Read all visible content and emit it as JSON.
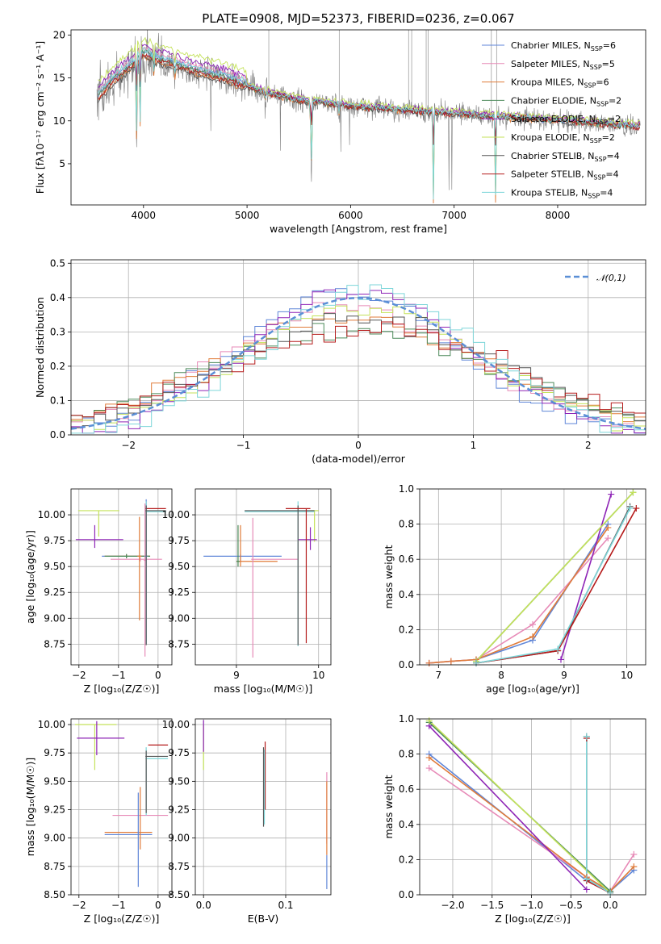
{
  "colors": {
    "Chabrier MILES": "#5f86d8",
    "Salpeter MILES": "#e78ab7",
    "Kroupa MILES": "#e07b39",
    "Chabrier ELODIE": "#4c8a5a",
    "Salpeter ELODIE": "#8e24b6",
    "Kroupa ELODIE": "#c4e25a",
    "Chabrier STELIB": "#555555",
    "Salpeter STELIB": "#b51b1b",
    "Kroupa STELIB": "#7dd6d9",
    "gauss": "#5b8fd6"
  },
  "chart_data": [
    {
      "id": "spectrum",
      "type": "line",
      "title": "PLATE=0908, MJD=52373, FIBERID=0236, z=0.067",
      "xlabel": "wavelength [Angstrom, rest frame]",
      "ylabel": "Flux [fλ10⁻¹⁷ erg cm⁻² s⁻¹ A⁻¹]",
      "xlim": [
        3300,
        8850
      ],
      "ylim": [
        0.2,
        20.6
      ],
      "xticks": [
        4000,
        5000,
        6000,
        7000,
        8000
      ],
      "yticks": [
        5,
        10,
        15,
        20
      ],
      "grid": false,
      "legend": [
        "Chabrier MILES, N_SSP=6",
        "Salpeter MILES, N_SSP=5",
        "Kroupa MILES, N_SSP=6",
        "Chabrier ELODIE, N_SSP=2",
        "Salpeter ELODIE, N_SSP=2",
        "Kroupa ELODIE, N_SSP=2",
        "Chabrier STELIB, N_SSP=4",
        "Salpeter STELIB, N_SSP=4",
        "Kroupa STELIB, N_SSP=4"
      ],
      "legend_position": "upper-right",
      "continuum": {
        "x": [
          3550,
          3700,
          3900,
          4000,
          4100,
          4300,
          4500,
          4800,
          5000,
          5200,
          5500,
          6000,
          6500,
          7000,
          7500,
          8000,
          8500,
          8800
        ],
        "y": [
          12.5,
          14.5,
          16.5,
          17.8,
          17.2,
          16.5,
          15.7,
          14.8,
          14.0,
          13.2,
          12.4,
          11.7,
          11.2,
          10.8,
          10.4,
          10.0,
          9.6,
          9.3
        ]
      },
      "absorption_features": [
        {
          "x": 3933,
          "depth": 9.5
        },
        {
          "x": 3968,
          "depth": 8.0
        },
        {
          "x": 4100,
          "depth": 2.0
        },
        {
          "x": 4300,
          "depth": 2.5
        },
        {
          "x": 5175,
          "depth": 1.5
        },
        {
          "x": 5620,
          "depth": 11.5
        },
        {
          "x": 5890,
          "depth": 1.5
        },
        {
          "x": 6800,
          "depth": 10.5
        },
        {
          "x": 7400,
          "depth": 9.5
        }
      ]
    },
    {
      "id": "residuals",
      "type": "line",
      "xlabel": "(data-model)/error",
      "ylabel": "Normed distribution",
      "xlim": [
        -2.5,
        2.5
      ],
      "ylim": [
        0,
        0.51
      ],
      "xticks": [
        -2,
        -1,
        0,
        1,
        2
      ],
      "yticks": [
        0.0,
        0.1,
        0.2,
        0.3,
        0.4,
        0.5
      ],
      "grid": true,
      "legend": [
        "𝒩(0,1)"
      ],
      "legend_position": "upper-right",
      "reference_curve": {
        "name": "𝒩(0,1)",
        "mean": 0,
        "sigma": 1
      },
      "histograms": "step histograms, 50 bins over [-2.5, 2.5], one per model, approximately normal"
    },
    {
      "id": "age_vs_Z",
      "type": "scatter",
      "xlabel": "Z [log₁₀(Z/Z☉)]",
      "ylabel": "age  [log₁₀(age/yr)]",
      "xlim": [
        -2.2,
        0.35
      ],
      "ylim": [
        8.55,
        10.25
      ],
      "xticks": [
        -2,
        -1,
        0
      ],
      "yticks": [
        8.75,
        9.0,
        9.25,
        9.5,
        9.75,
        10.0
      ],
      "grid": true,
      "points": [
        {
          "model": "Kroupa ELODIE",
          "x": -1.5,
          "xerr": [
            0.52,
            0.52
          ],
          "y": 10.04,
          "yerr": [
            0.25,
            0.0
          ]
        },
        {
          "model": "Salpeter ELODIE",
          "x": -1.6,
          "xerr": [
            0.48,
            0.72
          ],
          "y": 9.76,
          "yerr": [
            0.08,
            0.14
          ]
        },
        {
          "model": "Chabrier MILES",
          "x": -0.8,
          "xerr": [
            0.62,
            0.58
          ],
          "y": 9.6,
          "yerr": [
            0.02,
            0.02
          ]
        },
        {
          "model": "Kroupa MILES",
          "x": -0.8,
          "xerr": [
            0.55,
            0.6
          ],
          "y": 9.6,
          "yerr": [
            0.02,
            0.02
          ]
        },
        {
          "model": "Chabrier ELODIE",
          "x": -0.8,
          "xerr": [
            0.55,
            0.6
          ],
          "y": 9.6,
          "yerr": [
            0.02,
            0.02
          ]
        },
        {
          "model": "Salpeter MILES",
          "x": -0.45,
          "xerr": [
            0.75,
            0.55
          ],
          "y": 9.57,
          "yerr": [
            0.02,
            0.02
          ]
        },
        {
          "model": "Kroupa MILES",
          "x": -0.47,
          "xerr": [
            0.05,
            0.05
          ],
          "y": 9.6,
          "yerr": [
            0.62,
            0.38
          ]
        },
        {
          "model": "Salpeter MILES",
          "x": -0.33,
          "xerr": [
            0.03,
            0.03
          ],
          "y": 9.56,
          "yerr": [
            0.93,
            0.55
          ]
        },
        {
          "model": "Chabrier MILES",
          "x": -0.3,
          "xerr": [
            0.03,
            0.03
          ],
          "y": 9.6,
          "yerr": [
            0.85,
            0.55
          ]
        },
        {
          "model": "Kroupa STELIB",
          "x": -0.3,
          "xerr": [
            0.02,
            0.5
          ],
          "y": 10.03,
          "yerr": [
            1.28,
            0.1
          ]
        },
        {
          "model": "Salpeter STELIB",
          "x": -0.3,
          "xerr": [
            0.02,
            0.5
          ],
          "y": 10.06,
          "yerr": [
            0.0,
            0.0
          ]
        },
        {
          "model": "Chabrier STELIB",
          "x": -0.3,
          "xerr": [
            0.02,
            0.5
          ],
          "y": 10.04,
          "yerr": [
            1.3,
            0.05
          ]
        }
      ]
    },
    {
      "id": "age_vs_mass",
      "type": "scatter",
      "xlabel": "mass [log₁₀(M/M☉)]",
      "ylabel": "",
      "xlim": [
        8.5,
        10.15
      ],
      "ylim": [
        8.55,
        10.25
      ],
      "xticks": [
        9,
        10
      ],
      "yticks": [
        8.75,
        9.0,
        9.25,
        9.5,
        9.75,
        10.0
      ],
      "grid": true,
      "points": [
        {
          "model": "Kroupa ELODIE",
          "x": 9.95,
          "xerr": [
            0.05,
            0.05
          ],
          "y": 10.04,
          "yerr": [
            0.3,
            0.0
          ]
        },
        {
          "model": "Salpeter ELODIE",
          "x": 9.9,
          "xerr": [
            0.15,
            0.08
          ],
          "y": 9.76,
          "yerr": [
            0.1,
            0.12
          ]
        },
        {
          "model": "Chabrier MILES",
          "x": 9.05,
          "xerr": [
            0.45,
            0.5
          ],
          "y": 9.6,
          "yerr": [
            0.05,
            0.02
          ]
        },
        {
          "model": "Kroupa MILES",
          "x": 9.05,
          "xerr": [
            0.05,
            0.45
          ],
          "y": 9.55,
          "yerr": [
            0.05,
            0.35
          ]
        },
        {
          "model": "Chabrier ELODIE",
          "x": 9.02,
          "xerr": [
            0.02,
            0.02
          ],
          "y": 9.55,
          "yerr": [
            0.05,
            0.35
          ]
        },
        {
          "model": "Salpeter MILES",
          "x": 9.2,
          "xerr": [
            0.02,
            0.55
          ],
          "y": 9.57,
          "yerr": [
            0.95,
            0.4
          ]
        },
        {
          "model": "Kroupa STELIB",
          "x": 9.75,
          "xerr": [
            0.65,
            0.2
          ],
          "y": 10.03,
          "yerr": [
            1.3,
            0.1
          ]
        },
        {
          "model": "Chabrier STELIB",
          "x": 9.75,
          "xerr": [
            0.65,
            0.2
          ],
          "y": 10.04,
          "yerr": [
            1.3,
            0.05
          ]
        },
        {
          "model": "Salpeter STELIB",
          "x": 9.85,
          "xerr": [
            0.25,
            0.05
          ],
          "y": 10.06,
          "yerr": [
            1.3,
            0.0
          ]
        }
      ]
    },
    {
      "id": "massweight_vs_age",
      "type": "line",
      "xlabel": "age  [log₁₀(age/yr)]",
      "ylabel": "mass weight",
      "xlim": [
        6.7,
        10.3
      ],
      "ylim": [
        0,
        1
      ],
      "xticks": [
        7,
        8,
        9,
        10
      ],
      "yticks": [
        0.0,
        0.2,
        0.4,
        0.6,
        0.8,
        1.0
      ],
      "grid": true,
      "series": [
        {
          "name": "Chabrier MILES",
          "x": [
            6.85,
            7.2,
            7.6,
            8.5,
            9.7
          ],
          "y": [
            0.01,
            0.02,
            0.03,
            0.14,
            0.8
          ]
        },
        {
          "name": "Salpeter MILES",
          "x": [
            6.85,
            7.2,
            7.6,
            8.5,
            9.7
          ],
          "y": [
            0.01,
            0.02,
            0.03,
            0.23,
            0.72
          ]
        },
        {
          "name": "Kroupa MILES",
          "x": [
            6.85,
            7.2,
            7.6,
            8.5,
            9.7
          ],
          "y": [
            0.01,
            0.02,
            0.03,
            0.16,
            0.78
          ]
        },
        {
          "name": "Chabrier ELODIE",
          "x": [
            7.6,
            10.1
          ],
          "y": [
            0.02,
            0.98
          ]
        },
        {
          "name": "Salpeter ELODIE",
          "x": [
            8.95,
            9.75
          ],
          "y": [
            0.03,
            0.97
          ]
        },
        {
          "name": "Kroupa ELODIE",
          "x": [
            7.6,
            10.1
          ],
          "y": [
            0.02,
            0.98
          ]
        },
        {
          "name": "Chabrier STELIB",
          "x": [
            7.6,
            8.9,
            10.05
          ],
          "y": [
            0.01,
            0.08,
            0.9
          ]
        },
        {
          "name": "Salpeter STELIB",
          "x": [
            7.6,
            8.9,
            10.15
          ],
          "y": [
            0.01,
            0.08,
            0.89
          ]
        },
        {
          "name": "Kroupa STELIB",
          "x": [
            7.6,
            8.9,
            10.05
          ],
          "y": [
            0.01,
            0.09,
            0.89
          ]
        }
      ]
    },
    {
      "id": "mass_vs_Z",
      "type": "scatter",
      "xlabel": "Z [log₁₀(Z/Z☉)]",
      "ylabel": "mass [log₁₀(M/M☉)]",
      "xlim": [
        -2.2,
        0.35
      ],
      "ylim": [
        8.5,
        10.05
      ],
      "xticks": [
        -2,
        -1,
        0
      ],
      "yticks": [
        8.5,
        8.75,
        9.0,
        9.25,
        9.5,
        9.75,
        10.0
      ],
      "grid": true,
      "points": [
        {
          "model": "Kroupa ELODIE",
          "x": -1.6,
          "xerr": [
            0.5,
            0.55
          ],
          "y": 10.0,
          "yerr": [
            0.4,
            0.0
          ]
        },
        {
          "model": "Salpeter ELODIE",
          "x": -1.55,
          "xerr": [
            0.5,
            0.7
          ],
          "y": 9.88,
          "yerr": [
            0.15,
            0.15
          ]
        },
        {
          "model": "Chabrier MILES",
          "x": -0.8,
          "xerr": [
            0.55,
            0.65
          ],
          "y": 9.03,
          "yerr": [
            0.0,
            0.0
          ]
        },
        {
          "model": "Kroupa MILES",
          "x": -0.8,
          "xerr": [
            0.55,
            0.65
          ],
          "y": 9.05,
          "yerr": [
            0.0,
            0.0
          ]
        },
        {
          "model": "Salpeter MILES",
          "x": -0.45,
          "xerr": [
            0.7,
            0.7
          ],
          "y": 9.2,
          "yerr": [
            0.0,
            0.0
          ]
        },
        {
          "model": "Chabrier MILES",
          "x": -0.5,
          "xerr": [
            0.02,
            0.02
          ],
          "y": 9.05,
          "yerr": [
            0.48,
            0.35
          ]
        },
        {
          "model": "Kroupa MILES",
          "x": -0.45,
          "xerr": [
            0.02,
            0.02
          ],
          "y": 9.05,
          "yerr": [
            0.15,
            0.4
          ]
        },
        {
          "model": "Salpeter STELIB",
          "x": 0.05,
          "xerr": [
            0.3,
            0.2
          ],
          "y": 9.82,
          "yerr": [
            0.0,
            0.0
          ]
        },
        {
          "model": "Kroupa STELIB",
          "x": -0.3,
          "xerr": [
            0.02,
            0.55
          ],
          "y": 9.7,
          "yerr": [
            0.5,
            0.1
          ]
        },
        {
          "model": "Chabrier STELIB",
          "x": -0.3,
          "xerr": [
            0.02,
            0.55
          ],
          "y": 9.72,
          "yerr": [
            0.5,
            0.05
          ]
        }
      ]
    },
    {
      "id": "mass_vs_EBV",
      "type": "scatter",
      "xlabel": "E(B-V)",
      "ylabel": "",
      "xlim": [
        -0.01,
        0.155
      ],
      "ylim": [
        8.5,
        10.05
      ],
      "xticks": [
        0.0,
        0.1
      ],
      "yticks": [
        8.5,
        8.75,
        9.0,
        9.25,
        9.5,
        9.75,
        10.0
      ],
      "grid": true,
      "points": [
        {
          "model": "Kroupa ELODIE",
          "x": 0.0,
          "y": 9.95,
          "yerr": [
            0.35,
            0.05
          ]
        },
        {
          "model": "Salpeter ELODIE",
          "x": 0.0,
          "y": 9.96,
          "yerr": [
            0.2,
            0.08
          ]
        },
        {
          "model": "Chabrier STELIB",
          "x": 0.073,
          "y": 9.5,
          "yerr": [
            0.4,
            0.3
          ]
        },
        {
          "model": "Salpeter STELIB",
          "x": 0.075,
          "y": 9.55,
          "yerr": [
            0.3,
            0.3
          ]
        },
        {
          "model": "Kroupa STELIB",
          "x": 0.074,
          "y": 9.5,
          "yerr": [
            0.38,
            0.28
          ]
        },
        {
          "model": "Salpeter MILES",
          "x": 0.15,
          "y": 9.2,
          "yerr": [
            0.25,
            0.38
          ]
        },
        {
          "model": "Kroupa MILES",
          "x": 0.15,
          "y": 9.05,
          "yerr": [
            0.2,
            0.45
          ]
        },
        {
          "model": "Chabrier MILES",
          "x": 0.15,
          "y": 8.75,
          "yerr": [
            0.2,
            0.1
          ]
        }
      ]
    },
    {
      "id": "massweight_vs_Z",
      "type": "line",
      "xlabel": "Z [log₁₀(Z/Z☉)]",
      "ylabel": "mass weight",
      "xlim": [
        -2.42,
        0.45
      ],
      "ylim": [
        0,
        1
      ],
      "xticks": [
        -2.0,
        -1.5,
        -1.0,
        -0.5,
        0.0
      ],
      "yticks": [
        0.0,
        0.2,
        0.4,
        0.6,
        0.8,
        1.0
      ],
      "grid": true,
      "series": [
        {
          "name": "Chabrier MILES",
          "x": [
            -2.3,
            -0.3,
            0.0,
            0.3
          ],
          "y": [
            0.8,
            0.08,
            0.02,
            0.14
          ]
        },
        {
          "name": "Salpeter MILES",
          "x": [
            -2.3,
            -0.3,
            0.0,
            0.3
          ],
          "y": [
            0.72,
            0.1,
            0.02,
            0.23
          ]
        },
        {
          "name": "Kroupa MILES",
          "x": [
            -2.3,
            -0.3,
            0.0,
            0.3
          ],
          "y": [
            0.78,
            0.1,
            0.02,
            0.16
          ]
        },
        {
          "name": "Chabrier ELODIE",
          "x": [
            -2.3,
            0.0
          ],
          "y": [
            0.98,
            0.02
          ]
        },
        {
          "name": "Salpeter ELODIE",
          "x": [
            -2.3,
            -0.3
          ],
          "y": [
            0.96,
            0.03
          ]
        },
        {
          "name": "Kroupa ELODIE",
          "x": [
            -2.3,
            0.0
          ],
          "y": [
            0.99,
            0.01
          ]
        },
        {
          "name": "Chabrier STELIB",
          "x": [
            -0.3,
            -0.3,
            0.0
          ],
          "y": [
            0.9,
            0.09,
            0.01
          ]
        },
        {
          "name": "Salpeter STELIB",
          "x": [
            -0.3,
            -0.3,
            0.0
          ],
          "y": [
            0.89,
            0.08,
            0.01
          ]
        },
        {
          "name": "Kroupa STELIB",
          "x": [
            -0.3,
            -0.3,
            0.0
          ],
          "y": [
            0.9,
            0.09,
            0.01
          ]
        }
      ]
    }
  ]
}
